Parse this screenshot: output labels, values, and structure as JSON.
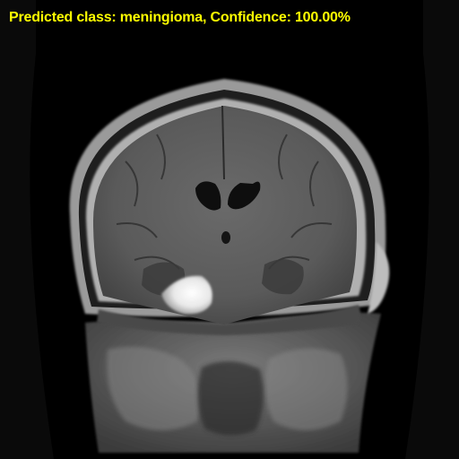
{
  "overlay": {
    "prediction_text": "Predicted class: meningioma, Confidence: 100.00%",
    "text_color": "#ffff00"
  },
  "image": {
    "subject": "mri-coronal-brain-scan"
  }
}
